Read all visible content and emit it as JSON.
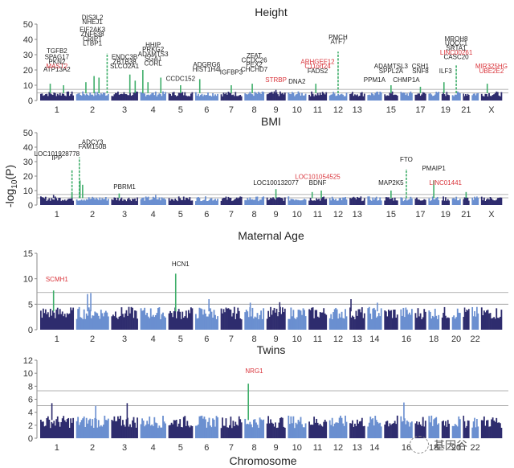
{
  "figure": {
    "ylabel": "-log10(P)",
    "xlabel": "Chromosome",
    "watermark": "基因谷"
  },
  "colors": {
    "dark": "#2e2c6e",
    "light": "#6a8fd0",
    "significant": "#3fae6a",
    "label_black": "#222222",
    "label_red": "#d9343b",
    "threshold_line": "#9a9a9a"
  },
  "chart_data": [
    {
      "type": "scatter",
      "subtype": "manhattan",
      "title": "Height",
      "ylabel": "-log10(P)",
      "ylim": [
        0,
        50
      ],
      "yticks": [
        0,
        10,
        20,
        30,
        40,
        50
      ],
      "xtick_labels": [
        "1",
        "2",
        "3",
        "4",
        "5",
        "6",
        "7",
        "8",
        "9",
        "10",
        "11",
        "12",
        "13",
        "15",
        "17",
        "19",
        "21",
        "X"
      ],
      "thresholds": [
        5,
        7.3
      ],
      "background_max": 6,
      "peaks": [
        {
          "chrom": "1",
          "pos": 0.3,
          "value": 11
        },
        {
          "chrom": "1",
          "pos": 0.7,
          "value": 10
        },
        {
          "chrom": "2",
          "pos": 0.3,
          "value": 12
        },
        {
          "chrom": "2",
          "pos": 0.55,
          "value": 16
        },
        {
          "chrom": "2",
          "pos": 0.7,
          "value": 15
        },
        {
          "chrom": "2",
          "pos": 0.95,
          "value": 31
        },
        {
          "chrom": "3",
          "pos": 0.7,
          "value": 17
        },
        {
          "chrom": "3",
          "pos": 0.9,
          "value": 13
        },
        {
          "chrom": "4",
          "pos": 0.1,
          "value": 20
        },
        {
          "chrom": "4",
          "pos": 0.3,
          "value": 12
        },
        {
          "chrom": "4",
          "pos": 0.8,
          "value": 15
        },
        {
          "chrom": "5",
          "pos": 0.5,
          "value": 10
        },
        {
          "chrom": "6",
          "pos": 0.2,
          "value": 14
        },
        {
          "chrom": "7",
          "pos": 0.5,
          "value": 10
        },
        {
          "chrom": "8",
          "pos": 0.4,
          "value": 11
        },
        {
          "chrom": "9",
          "pos": 0.5,
          "value": 7
        },
        {
          "chrom": "11",
          "pos": 0.4,
          "value": 11
        },
        {
          "chrom": "12",
          "pos": 0.5,
          "value": 32
        },
        {
          "chrom": "15",
          "pos": 0.5,
          "value": 10
        },
        {
          "chrom": "17",
          "pos": 0.5,
          "value": 9
        },
        {
          "chrom": "19",
          "pos": 0.3,
          "value": 12
        },
        {
          "chrom": "20",
          "pos": 0.5,
          "value": 23
        },
        {
          "chrom": "X",
          "pos": 0.3,
          "value": 11
        }
      ],
      "annotations": [
        {
          "text": "ATP13A2",
          "color": "black",
          "chrom": "1",
          "value": 19
        },
        {
          "text": "MAST2",
          "color": "red",
          "chrom": "1",
          "value": 21
        },
        {
          "text": "PKN2",
          "color": "black",
          "chrom": "1",
          "value": 24
        },
        {
          "text": "SPAG17",
          "color": "black",
          "chrom": "1",
          "value": 27
        },
        {
          "text": "TGFB2",
          "color": "black",
          "chrom": "1",
          "value": 31
        },
        {
          "text": "LTBP1",
          "color": "black",
          "chrom": "2",
          "value": 36
        },
        {
          "text": "CRIPT",
          "color": "black",
          "chrom": "2",
          "value": 39
        },
        {
          "text": "ZNF638",
          "color": "black",
          "chrom": "2",
          "value": 42
        },
        {
          "text": "EIF2AK3",
          "color": "black",
          "chrom": "2",
          "value": 45
        },
        {
          "text": "NHEJ1",
          "color": "black",
          "chrom": "2",
          "value": 50
        },
        {
          "text": "DIS3L2",
          "color": "black",
          "chrom": "2",
          "value": 53
        },
        {
          "text": "SLCO2A1",
          "color": "black",
          "chrom": "3",
          "value": 21
        },
        {
          "text": "ZBTB38",
          "color": "black",
          "chrom": "3",
          "value": 24
        },
        {
          "text": "ENDC3B",
          "color": "black",
          "chrom": "3",
          "value": 27
        },
        {
          "text": "CORL",
          "color": "black",
          "chrom": "4",
          "value": 23
        },
        {
          "text": "SGA1",
          "color": "black",
          "chrom": "4",
          "value": 26
        },
        {
          "text": "ADAMTS3",
          "color": "black",
          "chrom": "4",
          "value": 29
        },
        {
          "text": "PRKG2",
          "color": "black",
          "chrom": "4",
          "value": 32
        },
        {
          "text": "HHIP",
          "color": "black",
          "chrom": "4",
          "value": 35
        },
        {
          "text": "CCDC152",
          "color": "black",
          "chrom": "5",
          "value": 13
        },
        {
          "text": "HIST1H4I",
          "color": "black",
          "chrom": "6",
          "value": 19
        },
        {
          "text": "ADGRG6",
          "color": "black",
          "chrom": "6",
          "value": 22
        },
        {
          "text": "IGFBP3",
          "color": "black",
          "chrom": "7",
          "value": 17
        },
        {
          "text": "CHCHD7",
          "color": "black",
          "chrom": "8",
          "value": 19
        },
        {
          "text": "PEX2",
          "color": "black",
          "chrom": "8",
          "value": 22
        },
        {
          "text": "CCDC26",
          "color": "black",
          "chrom": "8",
          "value": 25
        },
        {
          "text": "ZFAT",
          "color": "black",
          "chrom": "8",
          "value": 28
        },
        {
          "text": "STRBP",
          "color": "red",
          "chrom": "9",
          "value": 12
        },
        {
          "text": "DNA2",
          "color": "black",
          "chrom": "10",
          "value": 11
        },
        {
          "text": "FADS2",
          "color": "black",
          "chrom": "11",
          "value": 18
        },
        {
          "text": "C11orf24",
          "color": "red",
          "chrom": "11",
          "value": 21
        },
        {
          "text": "ARHGEF12",
          "color": "red",
          "chrom": "11",
          "value": 24
        },
        {
          "text": "ATF7",
          "color": "black",
          "chrom": "12",
          "value": 37
        },
        {
          "text": "PMCH",
          "color": "black",
          "chrom": "12",
          "value": 40
        },
        {
          "text": "PPM1A",
          "color": "black",
          "chrom": "14",
          "value": 12
        },
        {
          "text": "SPPL2A",
          "color": "black",
          "chrom": "15",
          "value": 18
        },
        {
          "text": "ADAMTSL3",
          "color": "black",
          "chrom": "15",
          "value": 21
        },
        {
          "text": "CHMP1A",
          "color": "black",
          "chrom": "16",
          "value": 12
        },
        {
          "text": "SNF8",
          "color": "black",
          "chrom": "17",
          "value": 18
        },
        {
          "text": "CSH1",
          "color": "black",
          "chrom": "17",
          "value": 21
        },
        {
          "text": "ILF3",
          "color": "black",
          "chrom": "19",
          "value": 18
        },
        {
          "text": "CASC20",
          "color": "black",
          "chrom": "20",
          "value": 27
        },
        {
          "text": "LINC00261",
          "color": "red",
          "chrom": "20",
          "value": 30
        },
        {
          "text": "SRTA1",
          "color": "black",
          "chrom": "20",
          "value": 33
        },
        {
          "text": "UQCC1",
          "color": "black",
          "chrom": "20",
          "value": 36
        },
        {
          "text": "MROH8",
          "color": "black",
          "chrom": "20",
          "value": 39
        },
        {
          "text": "UBE2E2",
          "color": "red",
          "chrom": "X",
          "value": 18
        },
        {
          "text": "MIR325HG",
          "color": "red",
          "chrom": "X",
          "value": 21
        }
      ]
    },
    {
      "type": "scatter",
      "subtype": "manhattan",
      "title": "BMI",
      "ylabel": "-log10(P)",
      "ylim": [
        0,
        50
      ],
      "yticks": [
        0,
        10,
        20,
        30,
        40,
        50
      ],
      "xtick_labels": [
        "1",
        "2",
        "3",
        "4",
        "5",
        "6",
        "7",
        "8",
        "9",
        "10",
        "11",
        "12",
        "13",
        "15",
        "17",
        "19",
        "21",
        "X"
      ],
      "thresholds": [
        5,
        7.3
      ],
      "background_max": 6,
      "peaks": [
        {
          "chrom": "1",
          "pos": 0.4,
          "value": 7
        },
        {
          "chrom": "1",
          "pos": 0.95,
          "value": 24
        },
        {
          "chrom": "1",
          "pos": 0.95,
          "value": 9
        },
        {
          "chrom": "2",
          "pos": 0.1,
          "value": 33
        },
        {
          "chrom": "2",
          "pos": 0.12,
          "value": 17
        },
        {
          "chrom": "2",
          "pos": 0.2,
          "value": 14
        },
        {
          "chrom": "3",
          "pos": 0.3,
          "value": 8
        },
        {
          "chrom": "4",
          "pos": 0.6,
          "value": 7
        },
        {
          "chrom": "9",
          "pos": 0.5,
          "value": 11
        },
        {
          "chrom": "11",
          "pos": 0.2,
          "value": 9
        },
        {
          "chrom": "11",
          "pos": 0.7,
          "value": 10
        },
        {
          "chrom": "15",
          "pos": 0.5,
          "value": 10
        },
        {
          "chrom": "16",
          "pos": 0.5,
          "value": 25
        },
        {
          "chrom": "18",
          "pos": 0.5,
          "value": 17
        },
        {
          "chrom": "21",
          "pos": 0.5,
          "value": 9
        }
      ],
      "annotations": [
        {
          "text": "IPP",
          "color": "black",
          "chrom": "1",
          "value": 31
        },
        {
          "text": "LOC101928778",
          "color": "black",
          "chrom": "1",
          "value": 34
        },
        {
          "text": "FAM150B",
          "color": "black",
          "chrom": "2",
          "value": 39
        },
        {
          "text": "ADCY3",
          "color": "black",
          "chrom": "2",
          "value": 42
        },
        {
          "text": "PBRM1",
          "color": "black",
          "chrom": "3",
          "value": 11
        },
        {
          "text": "LOC100132077",
          "color": "black",
          "chrom": "9",
          "value": 14
        },
        {
          "text": "BDNF",
          "color": "black",
          "chrom": "11",
          "value": 14
        },
        {
          "text": "LOC101054525",
          "color": "red",
          "chrom": "11",
          "value": 18
        },
        {
          "text": "MAP2K5",
          "color": "black",
          "chrom": "15",
          "value": 14
        },
        {
          "text": "FTO",
          "color": "black",
          "chrom": "16",
          "value": 30
        },
        {
          "text": "PMAIP1",
          "color": "black",
          "chrom": "18",
          "value": 24
        },
        {
          "text": "LINC01441",
          "color": "red",
          "chrom": "19",
          "value": 14
        }
      ]
    },
    {
      "type": "scatter",
      "subtype": "manhattan",
      "title": "Maternal Age",
      "ylabel": "-log10(P)",
      "ylim": [
        0,
        15
      ],
      "yticks": [
        0,
        5,
        10,
        15
      ],
      "xtick_labels": [
        "1",
        "2",
        "3",
        "4",
        "5",
        "6",
        "7",
        "8",
        "9",
        "10",
        "11",
        "12",
        "13",
        "14",
        "16",
        "18",
        "20",
        "22"
      ],
      "thresholds": [
        5,
        7.3
      ],
      "background_max": 4.5,
      "peaks": [
        {
          "chrom": "1",
          "pos": 0.4,
          "value": 7.7
        },
        {
          "chrom": "2",
          "pos": 0.35,
          "value": 7.0
        },
        {
          "chrom": "2",
          "pos": 0.45,
          "value": 7.2
        },
        {
          "chrom": "5",
          "pos": 0.3,
          "value": 11
        },
        {
          "chrom": "6",
          "pos": 0.6,
          "value": 6
        },
        {
          "chrom": "8",
          "pos": 0.3,
          "value": 5.3
        },
        {
          "chrom": "9",
          "pos": 0.7,
          "value": 5.4
        },
        {
          "chrom": "13",
          "pos": 0.1,
          "value": 6
        },
        {
          "chrom": "14",
          "pos": 0.7,
          "value": 5.3
        }
      ],
      "annotations": [
        {
          "text": "SCMH1",
          "color": "red",
          "chrom": "1",
          "value": 9.5
        },
        {
          "text": "HCN1",
          "color": "black",
          "chrom": "5",
          "value": 12.5
        }
      ]
    },
    {
      "type": "scatter",
      "subtype": "manhattan",
      "title": "Twins",
      "ylabel": "-log10(P)",
      "xlabel": "Chromosome",
      "ylim": [
        0,
        12
      ],
      "yticks": [
        0,
        2,
        4,
        6,
        8,
        10,
        12
      ],
      "xtick_labels": [
        "1",
        "2",
        "3",
        "4",
        "5",
        "6",
        "7",
        "8",
        "9",
        "10",
        "11",
        "12",
        "13",
        "14",
        "16",
        "18",
        "20",
        "22"
      ],
      "thresholds": [
        5,
        7.3
      ],
      "background_max": 3.5,
      "peaks": [
        {
          "chrom": "1",
          "pos": 0.35,
          "value": 5.4
        },
        {
          "chrom": "2",
          "pos": 0.6,
          "value": 5.0
        },
        {
          "chrom": "3",
          "pos": 0.6,
          "value": 5.4
        },
        {
          "chrom": "8",
          "pos": 0.2,
          "value": 8.4
        },
        {
          "chrom": "16",
          "pos": 0.3,
          "value": 5.5
        }
      ],
      "annotations": [
        {
          "text": "NRG1",
          "color": "red",
          "chrom": "8",
          "value": 10
        }
      ]
    }
  ]
}
